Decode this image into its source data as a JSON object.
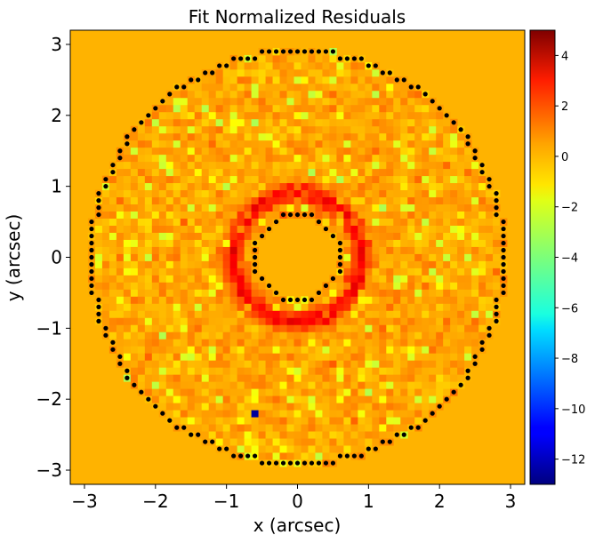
{
  "chart_data": {
    "type": "heatmap",
    "title": "Fit Normalized Residuals",
    "xlabel": "x (arcsec)",
    "ylabel": "y (arcsec)",
    "xlim": [
      -3.2,
      3.2
    ],
    "ylim": [
      -3.2,
      3.2
    ],
    "xticks": [
      -3,
      -2,
      -1,
      0,
      1,
      2,
      3
    ],
    "yticks": [
      -3,
      -2,
      -1,
      0,
      1,
      2,
      3
    ],
    "xtick_labels": [
      "−3",
      "−2",
      "−1",
      "0",
      "1",
      "2",
      "3"
    ],
    "ytick_labels": [
      "−3",
      "−2",
      "−1",
      "0",
      "1",
      "2",
      "3"
    ],
    "colormap": "jet",
    "colorbar": {
      "vmin": -13,
      "vmax": 5,
      "ticks": [
        4,
        2,
        0,
        -2,
        -4,
        -6,
        -8,
        -10,
        -12
      ],
      "tick_labels": [
        "4",
        "2",
        "0",
        "−2",
        "−4",
        "−6",
        "−8",
        "−10",
        "−12"
      ],
      "position": "right"
    },
    "mask": {
      "outer_radius": 2.95,
      "inner_radius": 0.55,
      "masked_value": 0,
      "boundary_marker": "black-dot"
    },
    "pixel_scale": 0.1,
    "features": [
      {
        "kind": "ring",
        "radius": 0.9,
        "value": 3.0,
        "description": "positive residual ring"
      },
      {
        "kind": "pixel",
        "x": -0.65,
        "y": -2.25,
        "value": -12.5
      }
    ],
    "background_value_range": [
      -3,
      2
    ],
    "grid": false
  }
}
